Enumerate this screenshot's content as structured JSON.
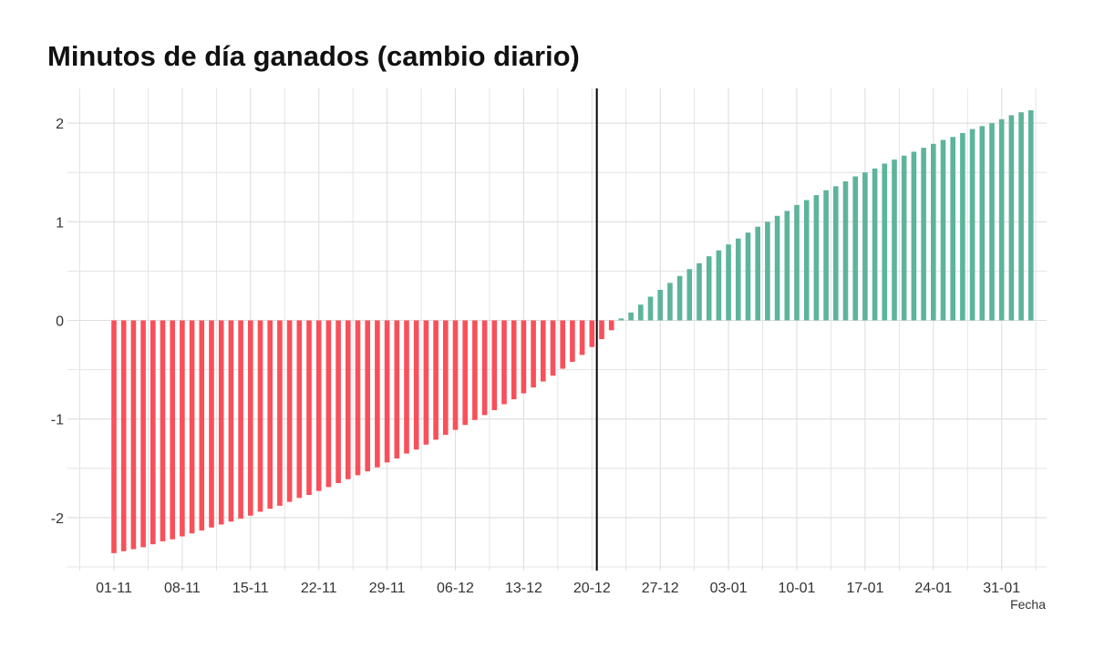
{
  "chart_data": {
    "type": "bar",
    "title": "Minutos de día ganados (cambio diario)",
    "xlabel": "Fecha",
    "ylabel": "",
    "ylim": [
      -2.5,
      2.3
    ],
    "y_ticks": [
      -2,
      -1,
      0,
      1,
      2
    ],
    "x_tick_labels": [
      "01-11",
      "08-11",
      "15-11",
      "22-11",
      "29-11",
      "06-12",
      "13-12",
      "20-12",
      "27-12",
      "03-01",
      "10-01",
      "17-01",
      "24-01",
      "31-01"
    ],
    "x_tick_day_index": [
      0,
      7,
      14,
      21,
      28,
      35,
      42,
      49,
      56,
      63,
      70,
      77,
      84,
      91
    ],
    "reference_line_day_index": 49.5,
    "grid": true,
    "colors": {
      "negative": "#f8505a",
      "positive": "#5db49b",
      "reference_line": "#000000",
      "grid": "#dedede"
    },
    "start_label": "01-11",
    "end_label": "31-01",
    "values": [
      -2.36,
      -2.34,
      -2.32,
      -2.3,
      -2.27,
      -2.24,
      -2.22,
      -2.19,
      -2.16,
      -2.13,
      -2.1,
      -2.07,
      -2.04,
      -2.01,
      -1.98,
      -1.94,
      -1.91,
      -1.88,
      -1.84,
      -1.8,
      -1.77,
      -1.73,
      -1.69,
      -1.65,
      -1.61,
      -1.57,
      -1.53,
      -1.49,
      -1.44,
      -1.4,
      -1.35,
      -1.31,
      -1.26,
      -1.21,
      -1.16,
      -1.11,
      -1.06,
      -1.01,
      -0.96,
      -0.91,
      -0.85,
      -0.8,
      -0.74,
      -0.68,
      -0.62,
      -0.56,
      -0.49,
      -0.42,
      -0.35,
      -0.27,
      -0.19,
      -0.1,
      0.02,
      0.08,
      0.16,
      0.24,
      0.31,
      0.38,
      0.45,
      0.52,
      0.58,
      0.65,
      0.71,
      0.77,
      0.83,
      0.89,
      0.95,
      1.0,
      1.06,
      1.11,
      1.17,
      1.22,
      1.27,
      1.32,
      1.36,
      1.41,
      1.46,
      1.5,
      1.54,
      1.59,
      1.63,
      1.67,
      1.71,
      1.75,
      1.79,
      1.83,
      1.86,
      1.9,
      1.94,
      1.97,
      2.0,
      2.04,
      2.08,
      2.11,
      2.13
    ]
  }
}
